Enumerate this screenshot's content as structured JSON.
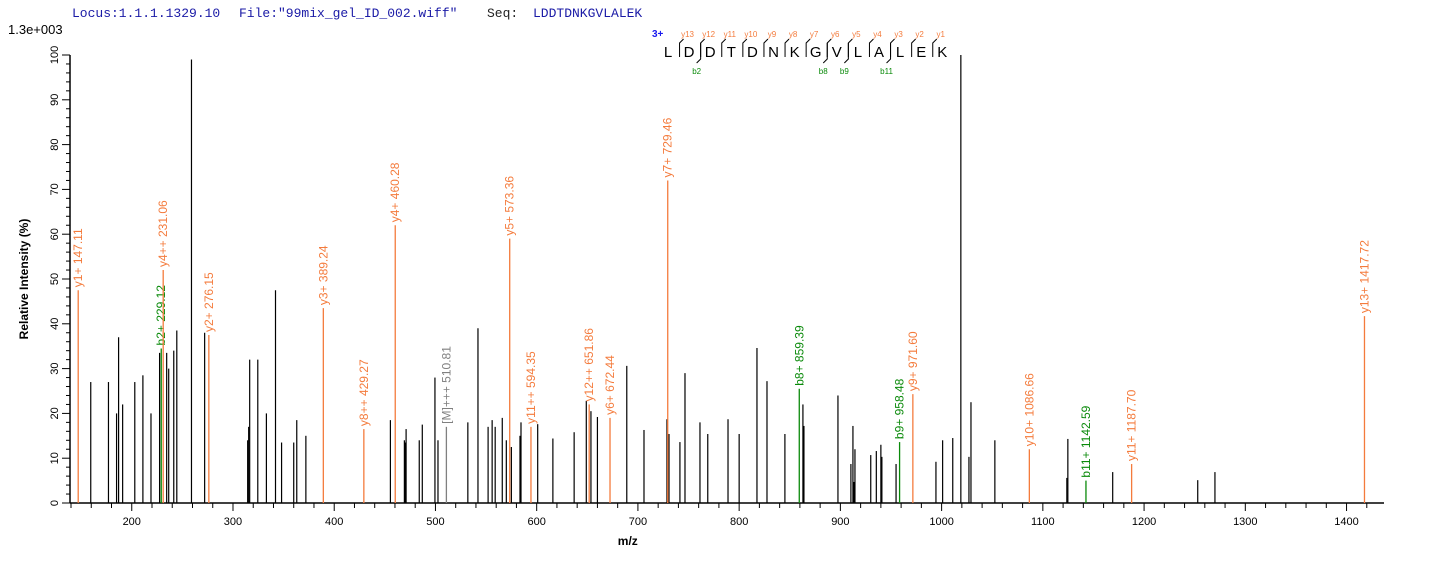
{
  "header": {
    "locus": "Locus:1.1.1.1329.10",
    "file": "File:\"99mix_gel_ID_002.wiff\"",
    "seq_label": "Seq:",
    "seq": "LDDTDNKGVLALEK"
  },
  "scale_label": "1.3e+003",
  "peptide": {
    "charge": "3+",
    "residues": [
      "L",
      "D",
      "D",
      "T",
      "D",
      "N",
      "K",
      "G",
      "V",
      "L",
      "A",
      "L",
      "E",
      "K"
    ],
    "y_ions": [
      "y13",
      "y12",
      "y11",
      "y10",
      "y9",
      "y8",
      "y7",
      "y6",
      "y5",
      "y4",
      "y3",
      "y2",
      "y1"
    ],
    "b_ions": {
      "2": "b2",
      "8": "b8",
      "9": "b9",
      "11": "b11"
    }
  },
  "colors": {
    "y_ion": "#f47b3c",
    "b_ion": "#0a8a0a",
    "precursor": "#808080",
    "unmatched": "#000000",
    "header": "#1a1aa6"
  },
  "chart_data": {
    "type": "bar",
    "xlabel": "m/z",
    "ylabel": "Relative   Intensity (%)",
    "xlim": [
      139,
      1437
    ],
    "ylim": [
      0,
      100
    ],
    "xticks": [
      200,
      300,
      400,
      500,
      600,
      700,
      800,
      900,
      1000,
      1100,
      1200,
      1300,
      1400
    ],
    "yticks": [
      0,
      10,
      20,
      30,
      40,
      50,
      60,
      70,
      80,
      90,
      100
    ],
    "grid": false,
    "annotated_peaks": [
      {
        "mz": 147.11,
        "intensity": 47.5,
        "label": "y1+ 147.11",
        "type": "y"
      },
      {
        "mz": 229.12,
        "intensity": 34.5,
        "label": "b2+ 229.12",
        "type": "b"
      },
      {
        "mz": 231.06,
        "intensity": 52,
        "label": "y4++ 231.06",
        "type": "y"
      },
      {
        "mz": 276.15,
        "intensity": 37.5,
        "label": "y2+ 276.15",
        "type": "y"
      },
      {
        "mz": 389.24,
        "intensity": 43.5,
        "label": "y3+ 389.24",
        "type": "y"
      },
      {
        "mz": 429.27,
        "intensity": 16.5,
        "label": "y8++ 429.27",
        "type": "y"
      },
      {
        "mz": 460.28,
        "intensity": 62,
        "label": "y4+ 460.28",
        "type": "y"
      },
      {
        "mz": 510.81,
        "intensity": 17,
        "label": "[M]+++ 510.81",
        "type": "precursor"
      },
      {
        "mz": 573.36,
        "intensity": 59,
        "label": "y5+ 573.36",
        "type": "y"
      },
      {
        "mz": 594.35,
        "intensity": 17,
        "label": "y11++ 594.35",
        "type": "y"
      },
      {
        "mz": 651.86,
        "intensity": 22,
        "label": "y12++ 651.86",
        "type": "y"
      },
      {
        "mz": 672.44,
        "intensity": 19,
        "label": "y6+ 672.44",
        "type": "y"
      },
      {
        "mz": 729.46,
        "intensity": 72,
        "label": "y7+ 729.46",
        "type": "y"
      },
      {
        "mz": 859.39,
        "intensity": 25.5,
        "label": "b8+ 859.39",
        "type": "b"
      },
      {
        "mz": 958.48,
        "intensity": 13.6,
        "label": "b9+ 958.48",
        "type": "b"
      },
      {
        "mz": 971.6,
        "intensity": 24.3,
        "label": "y9+ 971.60",
        "type": "y"
      },
      {
        "mz": 1086.66,
        "intensity": 12,
        "label": "y10+ 1086.66",
        "type": "y"
      },
      {
        "mz": 1142.59,
        "intensity": 5,
        "label": "b11+ 1142.59",
        "type": "b"
      },
      {
        "mz": 1187.7,
        "intensity": 8.7,
        "label": "y11+ 1187.70",
        "type": "y"
      },
      {
        "mz": 1417.72,
        "intensity": 41.7,
        "label": "y13+ 1417.72",
        "type": "y"
      }
    ],
    "peaks": [
      [
        159.5,
        27
      ],
      [
        177,
        27
      ],
      [
        185,
        20
      ],
      [
        187,
        37
      ],
      [
        191,
        22
      ],
      [
        203,
        27
      ],
      [
        211,
        28.5
      ],
      [
        219,
        20
      ],
      [
        227.5,
        33.5
      ],
      [
        234.5,
        33.5
      ],
      [
        236.5,
        30
      ],
      [
        241.5,
        34
      ],
      [
        244.5,
        38.5
      ],
      [
        259,
        99
      ],
      [
        272,
        38
      ],
      [
        314.5,
        14
      ],
      [
        315.5,
        17
      ],
      [
        316.5,
        32
      ],
      [
        324.5,
        32
      ],
      [
        333,
        20
      ],
      [
        342,
        47.5
      ],
      [
        348,
        13.5
      ],
      [
        360,
        13.5
      ],
      [
        363,
        18.5
      ],
      [
        372,
        15
      ],
      [
        455.5,
        18.5
      ],
      [
        469.3,
        14
      ],
      [
        470,
        13.5
      ],
      [
        471,
        16.5
      ],
      [
        484,
        14
      ],
      [
        487,
        17.5
      ],
      [
        499.5,
        28
      ],
      [
        502.5,
        14
      ],
      [
        532,
        18
      ],
      [
        542,
        39
      ],
      [
        552,
        17
      ],
      [
        556,
        18.5
      ],
      [
        559,
        17
      ],
      [
        566,
        19
      ],
      [
        570,
        14
      ],
      [
        575,
        12.5
      ],
      [
        583.5,
        15
      ],
      [
        584.5,
        18
      ],
      [
        601,
        17.6
      ],
      [
        616,
        14.4
      ],
      [
        637,
        15.8
      ],
      [
        649,
        22.8
      ],
      [
        653.6,
        20.5
      ],
      [
        660,
        19.2
      ],
      [
        689,
        30.6
      ],
      [
        706,
        16.3
      ],
      [
        728.7,
        18.7
      ],
      [
        730.7,
        15.4
      ],
      [
        741.5,
        13.6
      ],
      [
        746.5,
        29
      ],
      [
        761.3,
        18
      ],
      [
        769,
        15.4
      ],
      [
        789,
        18.7
      ],
      [
        800,
        15.4
      ],
      [
        817.6,
        34.6
      ],
      [
        827.5,
        27.2
      ],
      [
        845.2,
        15.4
      ],
      [
        863,
        22
      ],
      [
        864,
        17.2
      ],
      [
        897.6,
        24
      ],
      [
        910.4,
        8.7
      ],
      [
        912.4,
        17.2
      ],
      [
        913.4,
        4.7
      ],
      [
        914.4,
        12
      ],
      [
        930,
        10.7
      ],
      [
        935.5,
        11.6
      ],
      [
        940,
        13
      ],
      [
        941,
        10.3
      ],
      [
        955,
        8.7
      ],
      [
        994.4,
        9.2
      ],
      [
        1001,
        14
      ],
      [
        1011,
        14.5
      ],
      [
        1019,
        100
      ],
      [
        1027,
        10.3
      ],
      [
        1029,
        22.5
      ],
      [
        1052.6,
        14
      ],
      [
        1123.7,
        5.6
      ],
      [
        1124.7,
        14.3
      ],
      [
        1169,
        6.9
      ],
      [
        1253,
        5.1
      ],
      [
        1270,
        6.9
      ]
    ]
  }
}
